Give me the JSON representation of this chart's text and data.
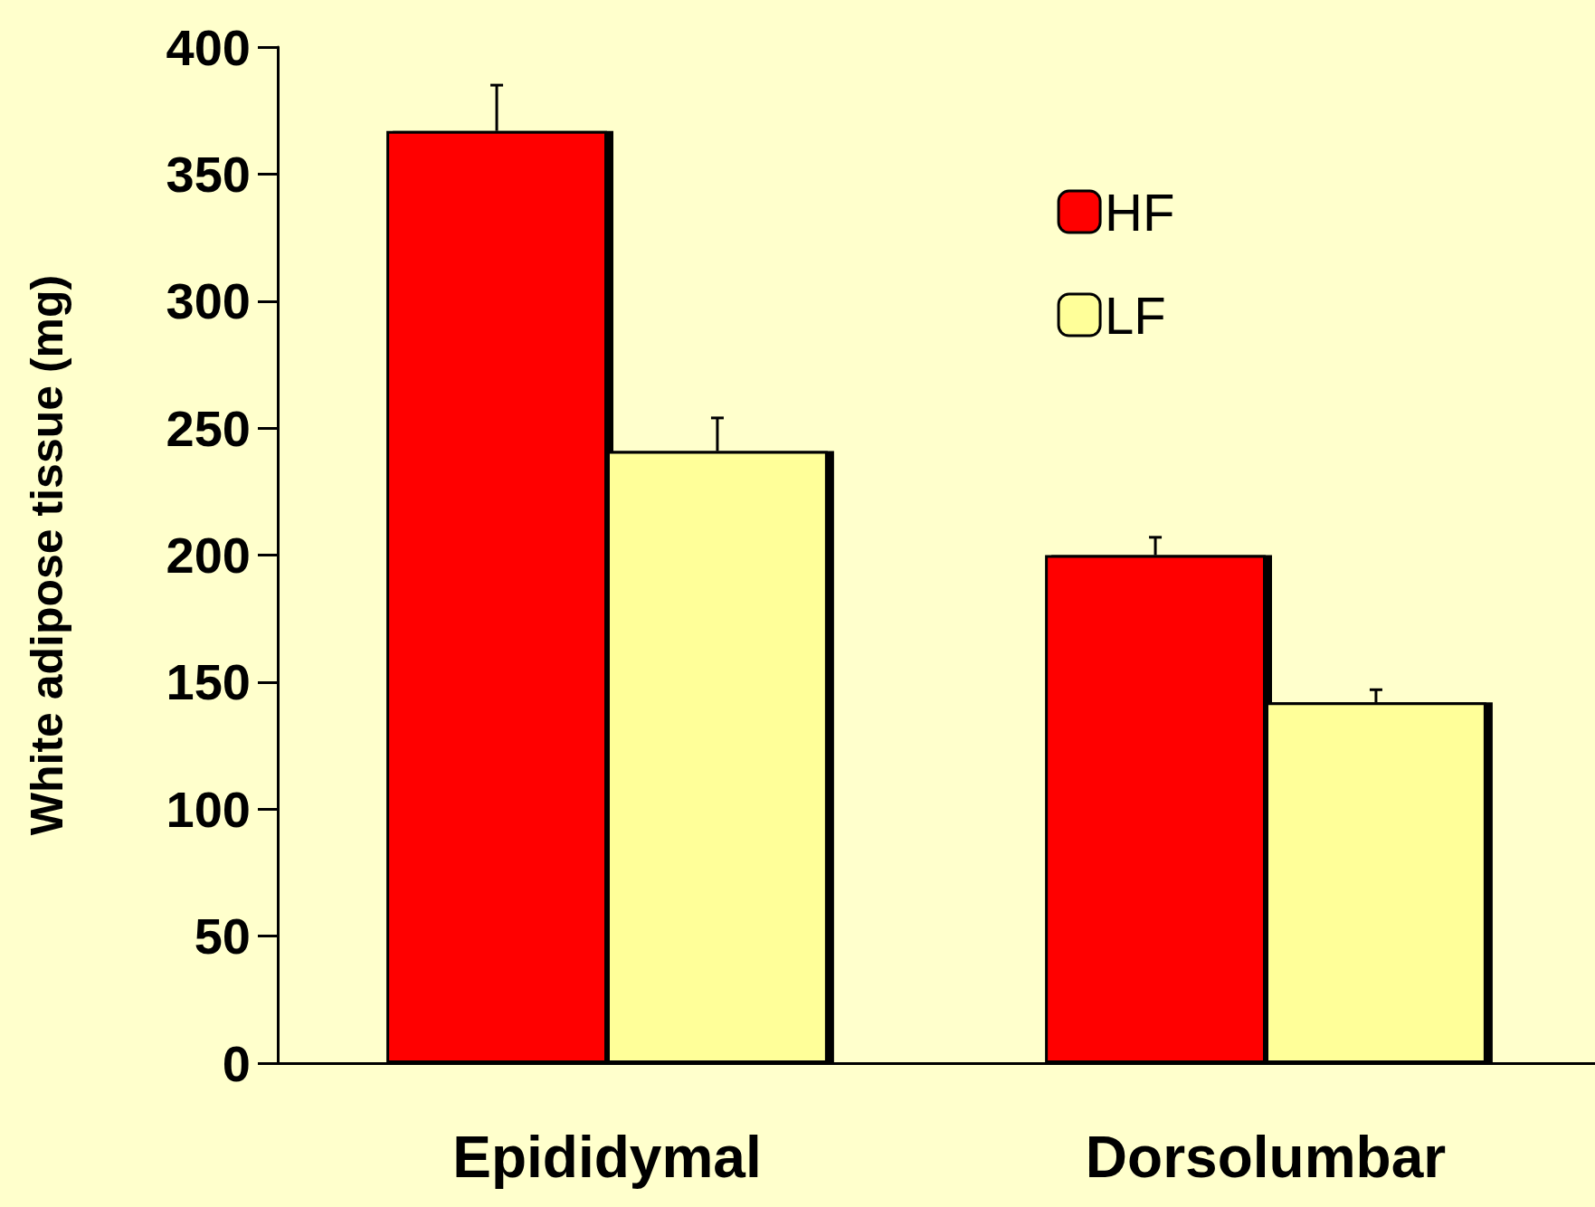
{
  "chart_data": {
    "type": "bar",
    "ylabel": "White adipose tissue (mg)",
    "categories": [
      "Epididymal",
      "Dorsolumbar"
    ],
    "series": [
      {
        "name": "HF",
        "color": "#ff0000",
        "values": [
          367,
          200
        ],
        "errors": [
          [
            367,
            385
          ],
          [
            200,
            207
          ]
        ]
      },
      {
        "name": "LF",
        "color": "#ffff99",
        "values": [
          241,
          142
        ],
        "errors": [
          [
            241,
            254
          ],
          [
            142,
            147
          ]
        ]
      }
    ],
    "ylim": [
      0,
      400
    ],
    "yticks": [
      0,
      50,
      100,
      150,
      200,
      250,
      300,
      350,
      400
    ],
    "grid": false,
    "legend": "top right"
  }
}
